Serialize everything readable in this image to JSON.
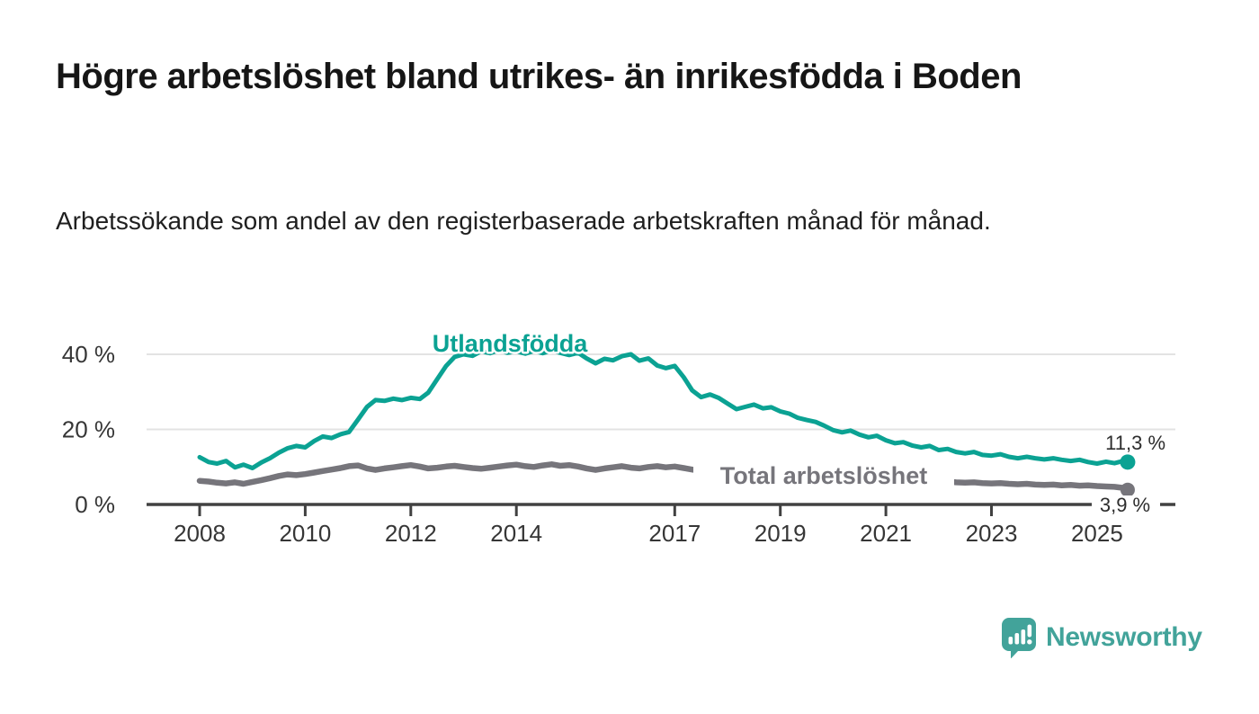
{
  "chart_data": {
    "type": "line",
    "title": "Högre arbetslöshet bland utrikes- än inrikesfödda i Boden",
    "subtitle": "Arbetssökande som andel av den registerbaserade arbetskraften månad för månad.",
    "x_axis": {
      "ticks": [
        {
          "v": 2008,
          "label": "2008"
        },
        {
          "v": 2010,
          "label": "2010"
        },
        {
          "v": 2012,
          "label": "2012"
        },
        {
          "v": 2014,
          "label": "2014"
        },
        {
          "v": 2017,
          "label": "2017"
        },
        {
          "v": 2019,
          "label": "2019"
        },
        {
          "v": 2021,
          "label": "2021"
        },
        {
          "v": 2023,
          "label": "2023"
        },
        {
          "v": 2025,
          "label": "2025"
        }
      ],
      "range": [
        2008.0,
        2025.58
      ]
    },
    "y_axis": {
      "ticks": [
        {
          "v": 0,
          "label": "0 %"
        },
        {
          "v": 20,
          "label": "20 %"
        },
        {
          "v": 40,
          "label": "40 %"
        }
      ],
      "range": [
        0,
        45
      ],
      "grid": true
    },
    "colors": {
      "utlandsfodda": "#0ba293",
      "total": "#76757b",
      "axis": "#414141",
      "grid": "#e3e3e3",
      "end_label_text": "#2d2d2d"
    },
    "series": [
      {
        "name": "Utlandsfödda",
        "color": "#0ba293",
        "end_label": "11,3 %",
        "end_value": 11.3,
        "points": [
          [
            2008.0,
            12.6
          ],
          [
            2008.17,
            11.3
          ],
          [
            2008.33,
            10.9
          ],
          [
            2008.5,
            11.6
          ],
          [
            2008.67,
            9.9
          ],
          [
            2008.83,
            10.6
          ],
          [
            2009.0,
            9.7
          ],
          [
            2009.17,
            11.2
          ],
          [
            2009.33,
            12.3
          ],
          [
            2009.5,
            13.8
          ],
          [
            2009.67,
            15.0
          ],
          [
            2009.83,
            15.6
          ],
          [
            2010.0,
            15.2
          ],
          [
            2010.17,
            16.9
          ],
          [
            2010.33,
            18.1
          ],
          [
            2010.5,
            17.7
          ],
          [
            2010.67,
            18.7
          ],
          [
            2010.83,
            19.3
          ],
          [
            2011.0,
            22.6
          ],
          [
            2011.17,
            26.0
          ],
          [
            2011.33,
            27.8
          ],
          [
            2011.5,
            27.6
          ],
          [
            2011.67,
            28.2
          ],
          [
            2011.83,
            27.8
          ],
          [
            2012.0,
            28.4
          ],
          [
            2012.17,
            28.1
          ],
          [
            2012.33,
            29.8
          ],
          [
            2012.5,
            33.4
          ],
          [
            2012.67,
            36.9
          ],
          [
            2012.83,
            39.3
          ],
          [
            2013.0,
            40.0
          ],
          [
            2013.17,
            39.6
          ],
          [
            2013.33,
            40.8
          ],
          [
            2013.5,
            40.3
          ],
          [
            2013.67,
            41.1
          ],
          [
            2013.83,
            40.4
          ],
          [
            2014.0,
            40.8
          ],
          [
            2014.17,
            40.2
          ],
          [
            2014.33,
            40.9
          ],
          [
            2014.5,
            40.3
          ],
          [
            2014.67,
            41.0
          ],
          [
            2014.83,
            40.4
          ],
          [
            2015.0,
            39.8
          ],
          [
            2015.17,
            40.4
          ],
          [
            2015.33,
            38.9
          ],
          [
            2015.5,
            37.6
          ],
          [
            2015.67,
            38.8
          ],
          [
            2015.83,
            38.4
          ],
          [
            2016.0,
            39.5
          ],
          [
            2016.17,
            40.0
          ],
          [
            2016.33,
            38.3
          ],
          [
            2016.5,
            38.9
          ],
          [
            2016.67,
            37.0
          ],
          [
            2016.83,
            36.3
          ],
          [
            2017.0,
            36.9
          ],
          [
            2017.17,
            33.9
          ],
          [
            2017.33,
            30.4
          ],
          [
            2017.5,
            28.6
          ],
          [
            2017.67,
            29.3
          ],
          [
            2017.83,
            28.4
          ],
          [
            2018.0,
            26.9
          ],
          [
            2018.17,
            25.4
          ],
          [
            2018.33,
            26.0
          ],
          [
            2018.5,
            26.6
          ],
          [
            2018.67,
            25.6
          ],
          [
            2018.83,
            25.9
          ],
          [
            2019.0,
            24.8
          ],
          [
            2019.17,
            24.2
          ],
          [
            2019.33,
            23.1
          ],
          [
            2019.5,
            22.5
          ],
          [
            2019.67,
            22.0
          ],
          [
            2019.83,
            21.0
          ],
          [
            2020.0,
            19.8
          ],
          [
            2020.17,
            19.2
          ],
          [
            2020.33,
            19.7
          ],
          [
            2020.5,
            18.6
          ],
          [
            2020.67,
            17.9
          ],
          [
            2020.83,
            18.3
          ],
          [
            2021.0,
            17.1
          ],
          [
            2021.17,
            16.3
          ],
          [
            2021.33,
            16.6
          ],
          [
            2021.5,
            15.7
          ],
          [
            2021.67,
            15.2
          ],
          [
            2021.83,
            15.6
          ],
          [
            2022.0,
            14.5
          ],
          [
            2022.17,
            14.8
          ],
          [
            2022.33,
            14.0
          ],
          [
            2022.5,
            13.6
          ],
          [
            2022.67,
            14.0
          ],
          [
            2022.83,
            13.2
          ],
          [
            2023.0,
            13.0
          ],
          [
            2023.17,
            13.4
          ],
          [
            2023.33,
            12.7
          ],
          [
            2023.5,
            12.3
          ],
          [
            2023.67,
            12.7
          ],
          [
            2023.83,
            12.3
          ],
          [
            2024.0,
            12.0
          ],
          [
            2024.17,
            12.3
          ],
          [
            2024.33,
            11.9
          ],
          [
            2024.5,
            11.6
          ],
          [
            2024.67,
            11.9
          ],
          [
            2024.83,
            11.3
          ],
          [
            2025.0,
            10.9
          ],
          [
            2025.17,
            11.4
          ],
          [
            2025.33,
            11.0
          ],
          [
            2025.5,
            11.6
          ],
          [
            2025.58,
            11.3
          ]
        ]
      },
      {
        "name": "Total arbetslöshet",
        "color": "#76757b",
        "end_label": "3,9 %",
        "end_value": 3.9,
        "points": [
          [
            2008.0,
            6.3
          ],
          [
            2008.17,
            6.1
          ],
          [
            2008.33,
            5.8
          ],
          [
            2008.5,
            5.6
          ],
          [
            2008.67,
            5.9
          ],
          [
            2008.83,
            5.5
          ],
          [
            2009.0,
            6.0
          ],
          [
            2009.17,
            6.5
          ],
          [
            2009.33,
            7.0
          ],
          [
            2009.5,
            7.6
          ],
          [
            2009.67,
            8.0
          ],
          [
            2009.83,
            7.8
          ],
          [
            2010.0,
            8.1
          ],
          [
            2010.17,
            8.5
          ],
          [
            2010.33,
            8.9
          ],
          [
            2010.5,
            9.3
          ],
          [
            2010.67,
            9.7
          ],
          [
            2010.83,
            10.2
          ],
          [
            2011.0,
            10.4
          ],
          [
            2011.17,
            9.6
          ],
          [
            2011.33,
            9.2
          ],
          [
            2011.5,
            9.6
          ],
          [
            2011.67,
            9.9
          ],
          [
            2011.83,
            10.2
          ],
          [
            2012.0,
            10.5
          ],
          [
            2012.17,
            10.1
          ],
          [
            2012.33,
            9.6
          ],
          [
            2012.5,
            9.8
          ],
          [
            2012.67,
            10.1
          ],
          [
            2012.83,
            10.3
          ],
          [
            2013.0,
            10.0
          ],
          [
            2013.17,
            9.7
          ],
          [
            2013.33,
            9.5
          ],
          [
            2013.5,
            9.8
          ],
          [
            2013.67,
            10.1
          ],
          [
            2013.83,
            10.4
          ],
          [
            2014.0,
            10.6
          ],
          [
            2014.17,
            10.2
          ],
          [
            2014.33,
            10.0
          ],
          [
            2014.5,
            10.4
          ],
          [
            2014.67,
            10.7
          ],
          [
            2014.83,
            10.3
          ],
          [
            2015.0,
            10.5
          ],
          [
            2015.17,
            10.1
          ],
          [
            2015.33,
            9.6
          ],
          [
            2015.5,
            9.2
          ],
          [
            2015.67,
            9.6
          ],
          [
            2015.83,
            9.9
          ],
          [
            2016.0,
            10.2
          ],
          [
            2016.17,
            9.8
          ],
          [
            2016.33,
            9.6
          ],
          [
            2016.5,
            10.0
          ],
          [
            2016.67,
            10.2
          ],
          [
            2016.83,
            9.9
          ],
          [
            2017.0,
            10.1
          ],
          [
            2017.17,
            9.7
          ],
          [
            2017.33,
            9.3
          ],
          [
            2017.5,
            8.9
          ],
          [
            2017.75,
            8.6
          ],
          [
            2018.0,
            8.4
          ],
          [
            2018.25,
            8.2
          ],
          [
            2018.5,
            8.0
          ],
          [
            2018.75,
            7.9
          ],
          [
            2019.0,
            7.7
          ],
          [
            2019.25,
            7.5
          ],
          [
            2019.5,
            7.4
          ],
          [
            2019.75,
            7.3
          ],
          [
            2020.0,
            7.5
          ],
          [
            2020.25,
            8.6
          ],
          [
            2020.5,
            8.9
          ],
          [
            2020.75,
            8.5
          ],
          [
            2021.0,
            8.0
          ],
          [
            2021.25,
            7.5
          ],
          [
            2021.5,
            7.1
          ],
          [
            2021.75,
            6.7
          ],
          [
            2022.0,
            6.3
          ],
          [
            2022.17,
            6.1
          ],
          [
            2022.33,
            5.9
          ],
          [
            2022.5,
            5.8
          ],
          [
            2022.67,
            5.9
          ],
          [
            2022.83,
            5.7
          ],
          [
            2023.0,
            5.6
          ],
          [
            2023.17,
            5.7
          ],
          [
            2023.33,
            5.5
          ],
          [
            2023.5,
            5.4
          ],
          [
            2023.67,
            5.5
          ],
          [
            2023.83,
            5.3
          ],
          [
            2024.0,
            5.2
          ],
          [
            2024.17,
            5.3
          ],
          [
            2024.33,
            5.1
          ],
          [
            2024.5,
            5.2
          ],
          [
            2024.67,
            5.0
          ],
          [
            2024.83,
            5.1
          ],
          [
            2025.0,
            4.9
          ],
          [
            2025.17,
            4.8
          ],
          [
            2025.33,
            4.7
          ],
          [
            2025.5,
            4.4
          ],
          [
            2025.58,
            3.9
          ]
        ]
      }
    ],
    "legend_position": "inline-labels"
  },
  "footer": {
    "brand": "Newsworthy",
    "brand_color": "#42a39a"
  }
}
